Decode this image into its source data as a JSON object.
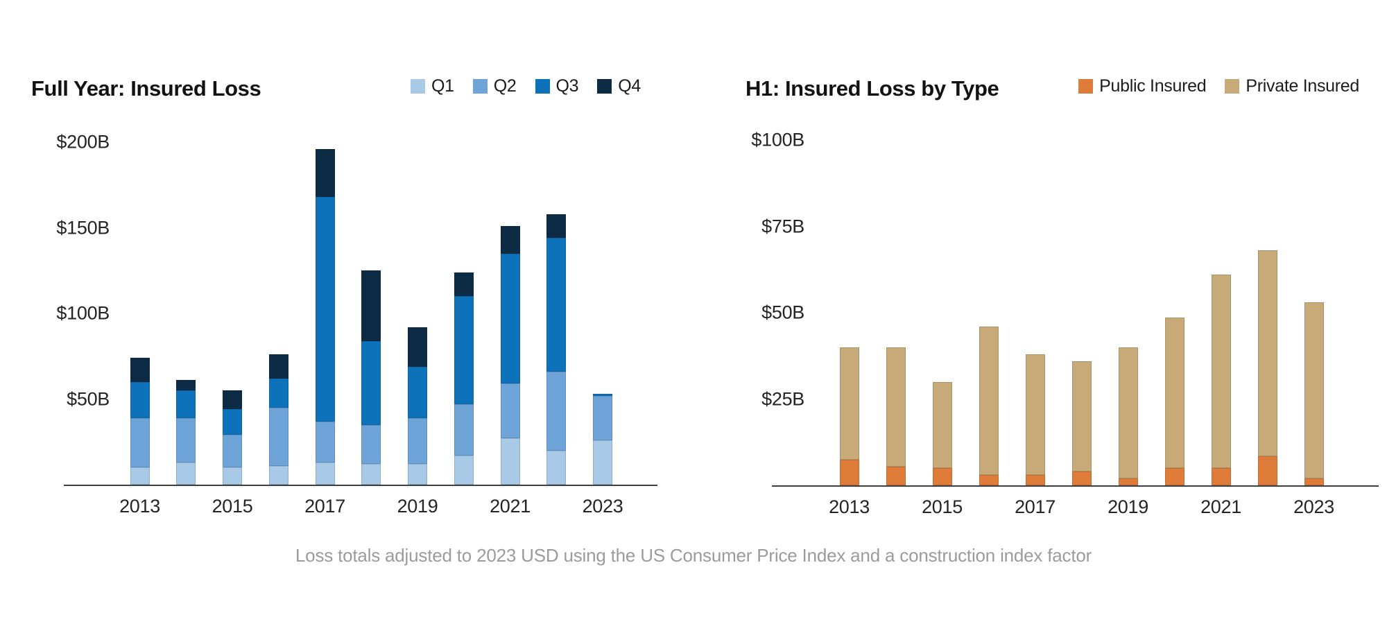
{
  "footnote": "Loss totals adjusted to 2023 USD using the US Consumer Price Index and a construction index factor",
  "units": "USD billions",
  "chart_data": [
    {
      "type": "bar",
      "stacked": true,
      "title": "Full Year: Insured Loss",
      "legend_position": "top-right-of-title",
      "grid": false,
      "categories": [
        "2013",
        "2014",
        "2015",
        "2016",
        "2017",
        "2018",
        "2019",
        "2020",
        "2021",
        "2022",
        "2023"
      ],
      "x_tick_labels": [
        "2013",
        "2015",
        "2017",
        "2019",
        "2021",
        "2023"
      ],
      "y_ticks": [
        {
          "value": 50,
          "label": "$50B"
        },
        {
          "value": 100,
          "label": "$100B"
        },
        {
          "value": 150,
          "label": "$150B"
        },
        {
          "value": 200,
          "label": "$200B"
        }
      ],
      "ylim": [
        0,
        218
      ],
      "series": [
        {
          "name": "Q1",
          "color": "#A8CAE6",
          "values": [
            10,
            13,
            10,
            11,
            13,
            12,
            12,
            17,
            27,
            20,
            26
          ]
        },
        {
          "name": "Q2",
          "color": "#6FA4D9",
          "values": [
            29,
            26,
            19,
            34,
            24,
            23,
            27,
            30,
            32,
            46,
            26
          ]
        },
        {
          "name": "Q3",
          "color": "#0D72B9",
          "values": [
            21,
            16,
            15,
            17,
            131,
            49,
            30,
            63,
            76,
            78,
            1
          ]
        },
        {
          "name": "Q4",
          "color": "#0D2B45",
          "values": [
            14,
            6,
            11,
            14,
            28,
            41,
            23,
            14,
            16,
            14,
            0
          ]
        }
      ],
      "totals": [
        74,
        61,
        55,
        76,
        196,
        125,
        92,
        124,
        151,
        158,
        53
      ]
    },
    {
      "type": "bar",
      "stacked": true,
      "title": "H1: Insured Loss by Type",
      "legend_position": "top-right",
      "grid": false,
      "categories": [
        "2013",
        "2014",
        "2015",
        "2016",
        "2017",
        "2018",
        "2019",
        "2020",
        "2021",
        "2022",
        "2023"
      ],
      "x_tick_labels": [
        "2013",
        "2015",
        "2017",
        "2019",
        "2021",
        "2023"
      ],
      "y_ticks": [
        {
          "value": 25,
          "label": "$25B"
        },
        {
          "value": 50,
          "label": "$50B"
        },
        {
          "value": 75,
          "label": "$75B"
        },
        {
          "value": 100,
          "label": "$100B"
        }
      ],
      "ylim": [
        0,
        110
      ],
      "series": [
        {
          "name": "Public Insured",
          "color": "#E07C3A",
          "values": [
            7.5,
            5.5,
            5,
            3,
            3,
            4,
            2,
            5,
            5,
            8.5,
            2
          ]
        },
        {
          "name": "Private Insured",
          "color": "#C8AA79",
          "values": [
            32.5,
            34.5,
            25,
            43,
            35,
            32,
            38,
            43.5,
            56,
            59.5,
            51
          ]
        }
      ],
      "totals": [
        40,
        40,
        30,
        46,
        38,
        36,
        40,
        48.5,
        61,
        68,
        53
      ]
    }
  ]
}
